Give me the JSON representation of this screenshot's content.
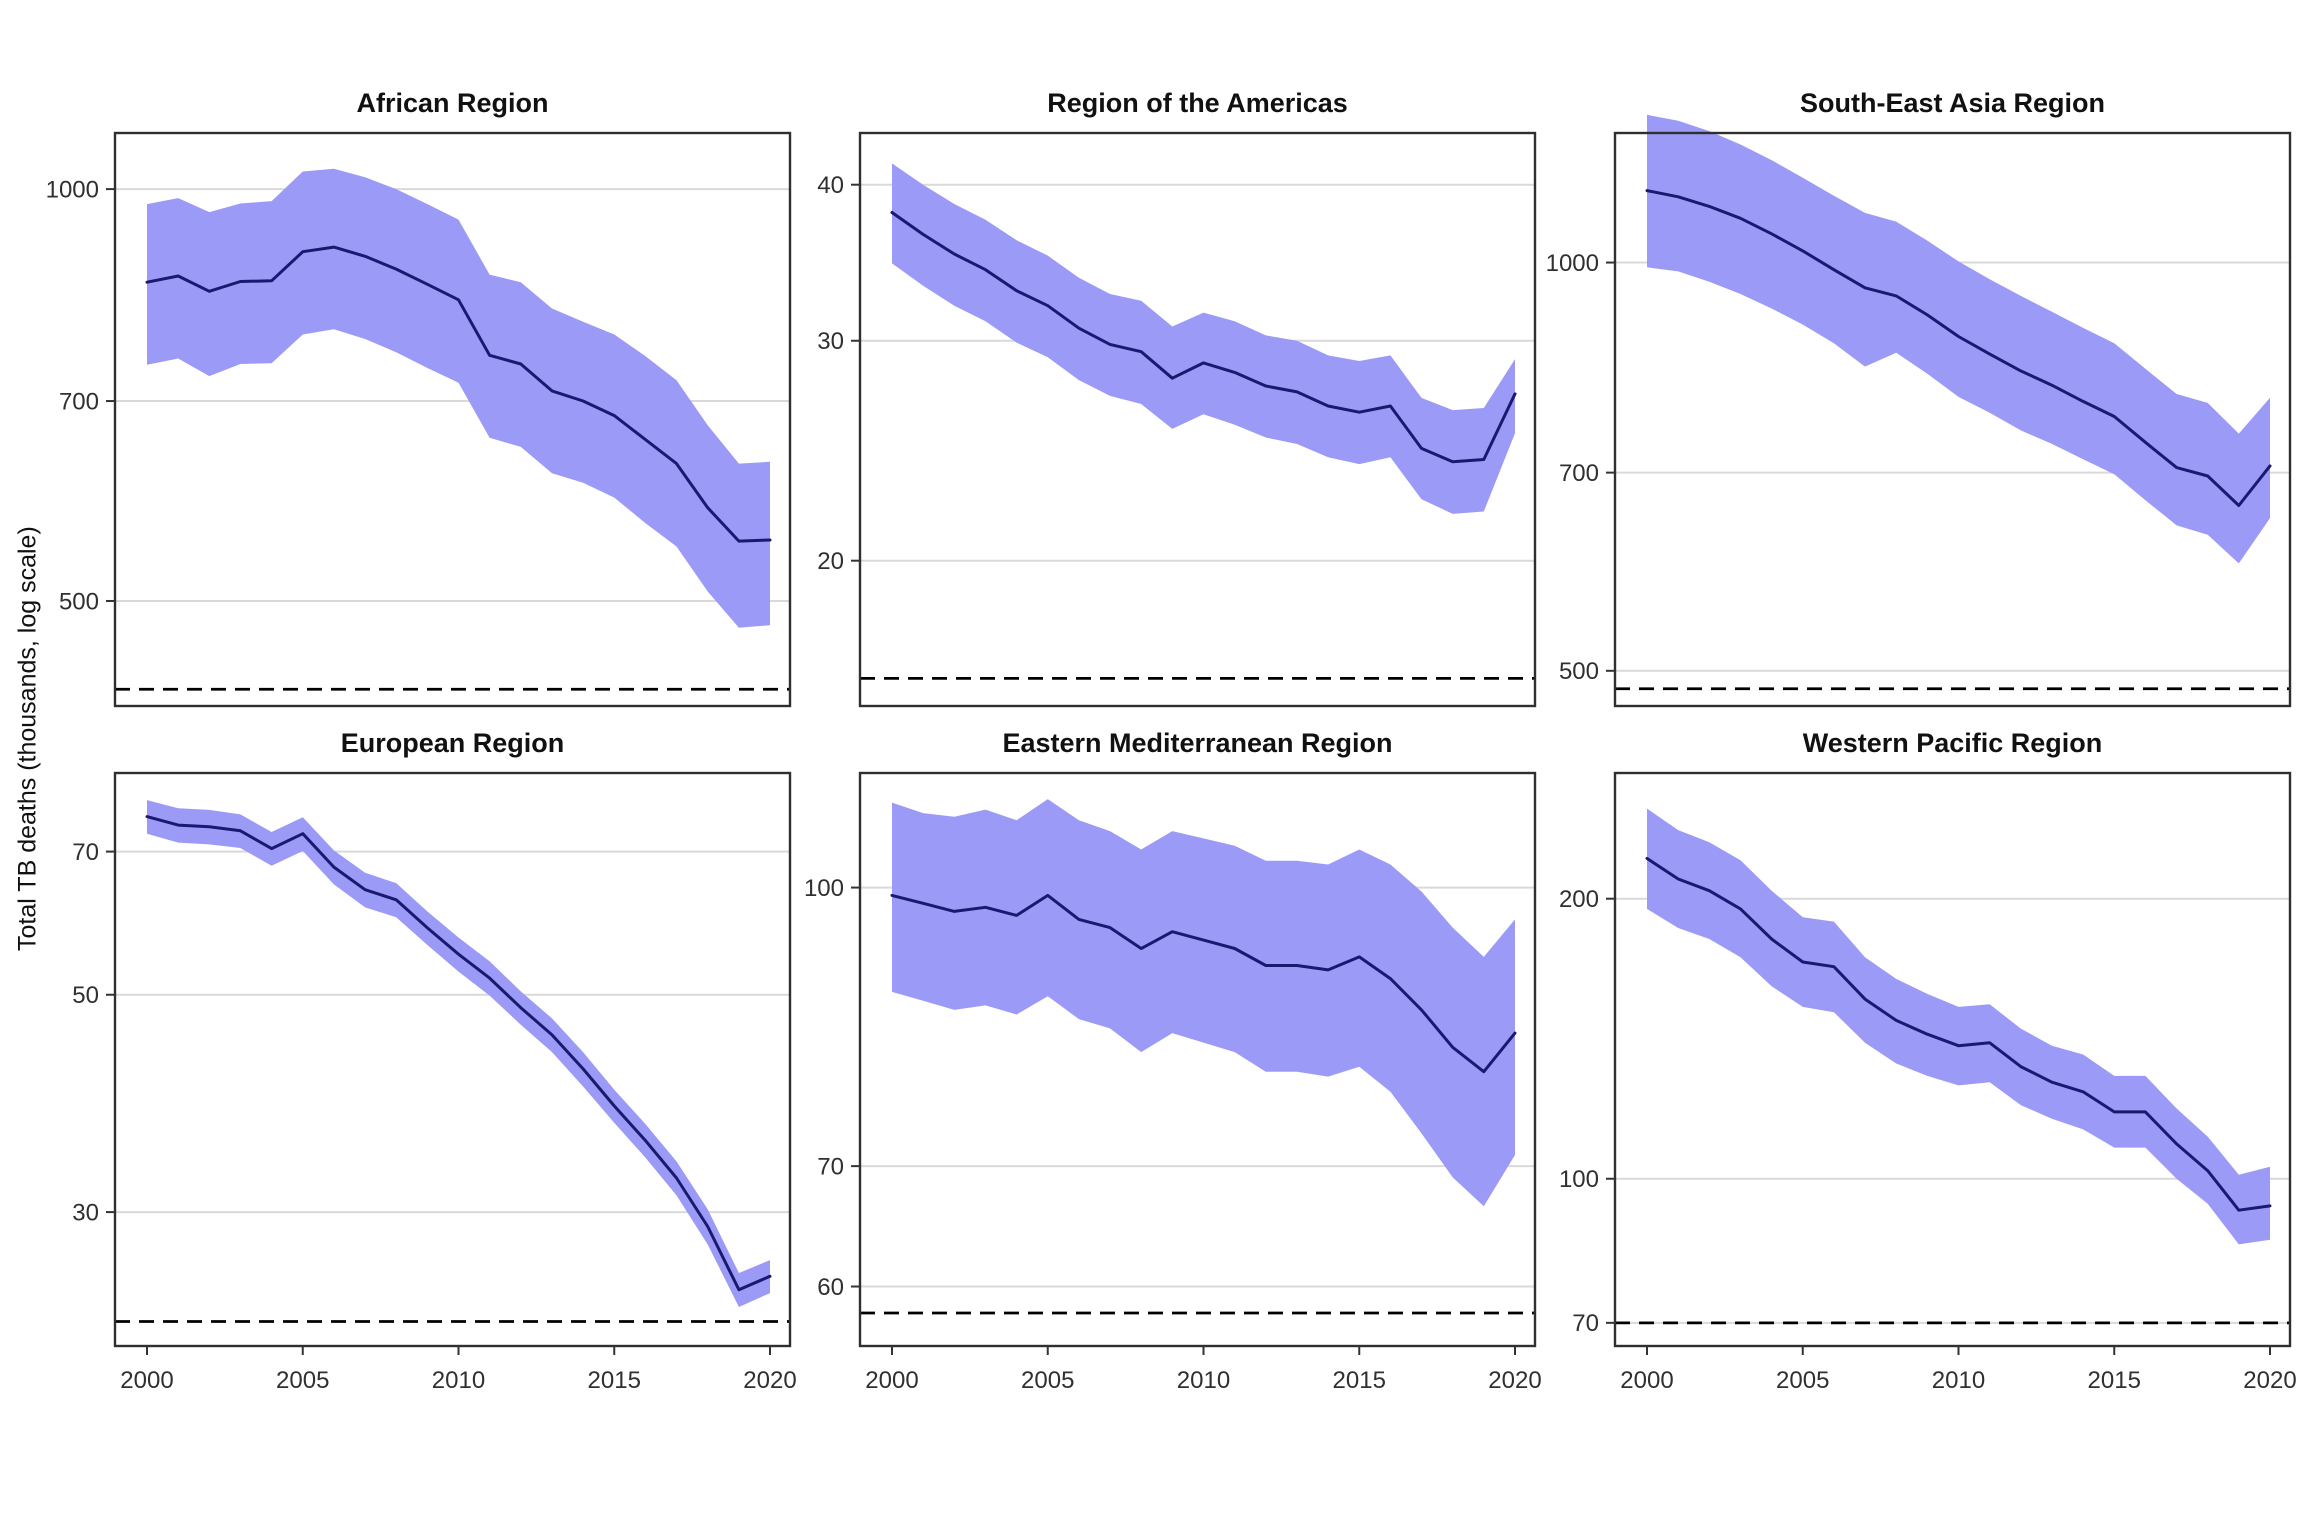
{
  "figure": {
    "ylabel": "Total TB deaths (thousands, log scale)"
  },
  "style": {
    "ribbon_color": "#9b9bf7",
    "line_color": "#191970",
    "grid_color": "#d9d9d9",
    "dashed_color": "#000000",
    "border_color": "#2f2f2f",
    "tick_color": "#333333",
    "text_color": "#1a1a1a",
    "background": "#ffffff"
  },
  "x_axis": {
    "years": [
      2000,
      2001,
      2002,
      2003,
      2004,
      2005,
      2006,
      2007,
      2008,
      2009,
      2010,
      2011,
      2012,
      2013,
      2014,
      2015,
      2016,
      2017,
      2018,
      2019,
      2020
    ],
    "tick_years": [
      2000,
      2005,
      2010,
      2015,
      2020
    ],
    "tick_labels": [
      "2000",
      "2005",
      "2010",
      "2015",
      "2020"
    ]
  },
  "chart_data": [
    {
      "type": "line",
      "title": "African Region",
      "scale": "log10",
      "grid": "y-major-only",
      "ylim": [
        419,
        1099
      ],
      "yticks": [
        1000,
        700,
        500
      ],
      "ytick_labels": [
        "1000",
        "700",
        "500"
      ],
      "dashed_target": 431,
      "x": [
        2000,
        2001,
        2002,
        2003,
        2004,
        2005,
        2006,
        2007,
        2008,
        2009,
        2010,
        2011,
        2012,
        2013,
        2014,
        2015,
        2016,
        2017,
        2018,
        2019,
        2020
      ],
      "series": [
        {
          "name": "median",
          "values": [
            855,
            864,
            842,
            856,
            857,
            900,
            907,
            893,
            874,
            852,
            830,
            756,
            745,
            712,
            700,
            683,
            656,
            630,
            585,
            553,
            554
          ]
        },
        {
          "name": "lower",
          "values": [
            744,
            752,
            730,
            745,
            746,
            783,
            790,
            777,
            760,
            740,
            722,
            658,
            648,
            620,
            610,
            595,
            570,
            548,
            508,
            478,
            480
          ]
        },
        {
          "name": "upper",
          "values": [
            975,
            985,
            962,
            976,
            980,
            1030,
            1035,
            1020,
            1000,
            975,
            950,
            866,
            855,
            818,
            800,
            783,
            755,
            725,
            672,
            630,
            632
          ]
        }
      ]
    },
    {
      "type": "line",
      "title": "Region of the Americas",
      "scale": "log10",
      "grid": "y-major-only",
      "ylim": [
        15.3,
        44.0
      ],
      "yticks": [
        40,
        30,
        20
      ],
      "ytick_labels": [
        "40",
        "30",
        "20"
      ],
      "dashed_target": 16.1,
      "x": [
        2000,
        2001,
        2002,
        2003,
        2004,
        2005,
        2006,
        2007,
        2008,
        2009,
        2010,
        2011,
        2012,
        2013,
        2014,
        2015,
        2016,
        2017,
        2018,
        2019,
        2020
      ],
      "series": [
        {
          "name": "median",
          "values": [
            38.0,
            36.5,
            35.2,
            34.2,
            32.9,
            32.0,
            30.7,
            29.8,
            29.4,
            28.0,
            28.8,
            28.3,
            27.6,
            27.3,
            26.6,
            26.3,
            26.6,
            24.6,
            24.0,
            24.1,
            27.2
          ]
        },
        {
          "name": "lower",
          "values": [
            34.6,
            33.2,
            32.0,
            31.1,
            29.9,
            29.1,
            27.9,
            27.1,
            26.7,
            25.5,
            26.2,
            25.7,
            25.1,
            24.8,
            24.2,
            23.9,
            24.2,
            22.4,
            21.8,
            21.9,
            25.3
          ]
        },
        {
          "name": "upper",
          "values": [
            41.6,
            40.0,
            38.6,
            37.5,
            36.1,
            35.1,
            33.7,
            32.7,
            32.3,
            30.8,
            31.6,
            31.1,
            30.3,
            30.0,
            29.2,
            28.9,
            29.2,
            27.0,
            26.4,
            26.5,
            29.0
          ]
        }
      ]
    },
    {
      "type": "line",
      "title": "South-East Asia Region",
      "scale": "log10",
      "grid": "y-major-only",
      "ylim": [
        471,
        1246
      ],
      "yticks": [
        1000,
        700,
        500
      ],
      "ytick_labels": [
        "1000",
        "700",
        "500"
      ],
      "dashed_target": 485,
      "x": [
        2000,
        2001,
        2002,
        2003,
        2004,
        2005,
        2006,
        2007,
        2008,
        2009,
        2010,
        2011,
        2012,
        2013,
        2014,
        2015,
        2016,
        2017,
        2018,
        2019,
        2020
      ],
      "series": [
        {
          "name": "median",
          "values": [
            1130,
            1118,
            1100,
            1078,
            1050,
            1020,
            988,
            958,
            945,
            915,
            882,
            856,
            832,
            812,
            790,
            770,
            737,
            706,
            696,
            662,
            708
          ]
        },
        {
          "name": "lower",
          "values": [
            992,
            985,
            968,
            948,
            925,
            900,
            872,
            838,
            858,
            828,
            796,
            775,
            752,
            735,
            716,
            698,
            668,
            640,
            630,
            600,
            648
          ]
        },
        {
          "name": "upper",
          "values": [
            1285,
            1272,
            1250,
            1222,
            1190,
            1155,
            1120,
            1088,
            1072,
            1038,
            1002,
            972,
            945,
            920,
            895,
            872,
            835,
            800,
            788,
            748,
            795
          ]
        }
      ]
    },
    {
      "type": "line",
      "title": "European Region",
      "scale": "log10",
      "grid": "y-major-only",
      "ylim": [
        21.9,
        84.2
      ],
      "yticks": [
        70,
        50,
        30
      ],
      "ytick_labels": [
        "70",
        "50",
        "30"
      ],
      "dashed_target": 23.2,
      "x": [
        2000,
        2001,
        2002,
        2003,
        2004,
        2005,
        2006,
        2007,
        2008,
        2009,
        2010,
        2011,
        2012,
        2013,
        2014,
        2015,
        2016,
        2017,
        2018,
        2019,
        2020
      ],
      "series": [
        {
          "name": "median",
          "values": [
            76,
            74.5,
            74.2,
            73.5,
            70.5,
            73,
            67.5,
            64,
            62.5,
            58.5,
            55,
            52,
            48.5,
            45.5,
            42,
            38.5,
            35.5,
            32.5,
            29,
            25,
            25.8
          ]
        },
        {
          "name": "lower",
          "values": [
            73,
            71.5,
            71.2,
            70.6,
            67.7,
            70.1,
            64.8,
            61.4,
            60,
            56.2,
            52.8,
            49.9,
            46.6,
            43.7,
            40.3,
            37,
            34.1,
            31.2,
            27.8,
            24,
            24.8
          ]
        },
        {
          "name": "upper",
          "values": [
            79,
            77.5,
            77.2,
            76.4,
            73.3,
            75.9,
            70.2,
            66.6,
            65,
            60.8,
            57.2,
            54.1,
            50.4,
            47.3,
            43.7,
            40,
            36.9,
            33.8,
            30.2,
            26,
            26.8
          ]
        }
      ]
    },
    {
      "type": "line",
      "title": "Eastern Mediterranean Region",
      "scale": "log10",
      "grid": "y-major-only",
      "ylim": [
        55.6,
        115.8
      ],
      "yticks": [
        100,
        70,
        60
      ],
      "ytick_labels": [
        "100",
        "70",
        "60"
      ],
      "dashed_target": 58,
      "x": [
        2000,
        2001,
        2002,
        2003,
        2004,
        2005,
        2006,
        2007,
        2008,
        2009,
        2010,
        2011,
        2012,
        2013,
        2014,
        2015,
        2016,
        2017,
        2018,
        2019,
        2020
      ],
      "series": [
        {
          "name": "median",
          "values": [
            99,
            98,
            97,
            97.5,
            96.5,
            99,
            96,
            95,
            92.5,
            94.5,
            93.5,
            92.5,
            90.5,
            90.5,
            90,
            91.5,
            89,
            85.5,
            81.5,
            79,
            83
          ]
        },
        {
          "name": "lower",
          "values": [
            87.5,
            86.5,
            85.5,
            86,
            85,
            87,
            84.5,
            83.5,
            81,
            83,
            82,
            81,
            79,
            79,
            78.5,
            79.5,
            77,
            73,
            69,
            66.5,
            71
          ]
        },
        {
          "name": "upper",
          "values": [
            111.5,
            110,
            109.5,
            110.5,
            109,
            112,
            109,
            107.5,
            105,
            107.5,
            106.5,
            105.5,
            103.5,
            103.5,
            103,
            105,
            103,
            99.5,
            95,
            91.5,
            96
          ]
        }
      ]
    },
    {
      "type": "line",
      "title": "Western Pacific Region",
      "scale": "log10",
      "grid": "y-major-only",
      "ylim": [
        66.1,
        273
      ],
      "yticks": [
        200,
        100,
        70
      ],
      "ytick_labels": [
        "200",
        "100",
        "70"
      ],
      "dashed_target": 70,
      "x": [
        2000,
        2001,
        2002,
        2003,
        2004,
        2005,
        2006,
        2007,
        2008,
        2009,
        2010,
        2011,
        2012,
        2013,
        2014,
        2015,
        2016,
        2017,
        2018,
        2019,
        2020
      ],
      "series": [
        {
          "name": "median",
          "values": [
            221,
            210,
            204,
            195,
            181,
            171,
            169,
            156,
            148,
            143,
            139,
            140,
            132,
            127,
            124,
            118,
            118,
            109,
            102,
            92.5,
            93.5
          ]
        },
        {
          "name": "lower",
          "values": [
            195,
            186,
            181,
            173,
            161,
            153,
            151,
            140,
            133,
            129,
            126,
            127,
            120,
            116,
            113,
            108,
            108,
            100,
            94,
            85,
            86
          ]
        },
        {
          "name": "upper",
          "values": [
            250,
            237,
            230,
            220,
            204,
            191,
            189,
            173,
            164,
            158,
            153,
            154,
            145,
            139,
            136,
            129,
            129,
            119,
            111,
            101,
            103
          ]
        }
      ]
    }
  ]
}
